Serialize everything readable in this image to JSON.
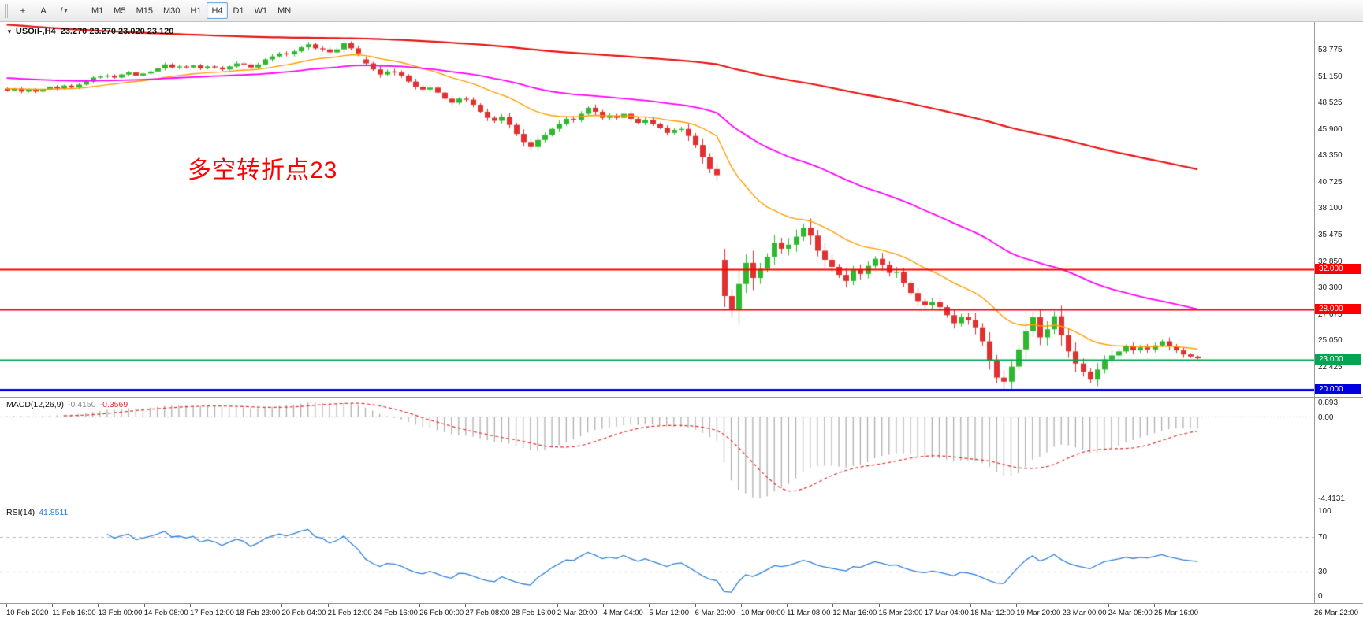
{
  "toolbar": {
    "left_icons": [
      {
        "name": "crosshair-icon",
        "glyph": "+"
      },
      {
        "name": "text-tool-icon",
        "glyph": "A"
      },
      {
        "name": "trendline-icon",
        "glyph": "/"
      },
      {
        "name": "dropdown-arrow-icon",
        "glyph": "▾"
      }
    ],
    "timeframes": [
      "M1",
      "M5",
      "M15",
      "M30",
      "H1",
      "H4",
      "D1",
      "W1",
      "MN"
    ],
    "active_timeframe": "H4"
  },
  "chart": {
    "symbol_icon": "▼",
    "title": "USOil-,H4",
    "ohlc_text": "23.270 23.270 23.020 23.120",
    "annotation": {
      "text": "多空转折点23",
      "color": "#ff0000"
    },
    "horizontal_lines": [
      {
        "price": 32.0,
        "label": "32.000",
        "color": "#ff0000",
        "width": 2
      },
      {
        "price": 28.0,
        "label": "28.000",
        "color": "#ff0000",
        "width": 2
      },
      {
        "price": 23.0,
        "label": "23.000",
        "color": "#00a651",
        "width": 2
      },
      {
        "price": 20.0,
        "label": "20.000",
        "color": "#0000e0",
        "width": 3
      }
    ],
    "price_ticks": [
      "53.775",
      "51.150",
      "48.525",
      "45.900",
      "43.350",
      "40.725",
      "38.100",
      "35.475",
      "32.850",
      "30.300",
      "27.675",
      "25.050",
      "22.425"
    ]
  },
  "chart_data": {
    "type": "candlestick",
    "symbol": "USOil-",
    "timeframe": "H4",
    "current_bar": {
      "open": 23.27,
      "high": 23.27,
      "low": 23.02,
      "close": 23.12
    },
    "up_color": "#2eb82e",
    "down_color": "#e03030",
    "bars_per_day": 5,
    "closes": [
      49.7,
      49.9,
      49.6,
      49.8,
      49.6,
      49.8,
      50.1,
      49.9,
      50.2,
      50.0,
      50.3,
      50.6,
      51.0,
      51.1,
      51.2,
      51.0,
      51.3,
      51.5,
      51.2,
      51.4,
      51.6,
      51.9,
      52.3,
      52.0,
      52.1,
      52.0,
      52.2,
      51.9,
      52.1,
      52.0,
      51.8,
      52.1,
      52.4,
      52.3,
      52.0,
      52.3,
      52.8,
      53.1,
      53.4,
      53.3,
      53.6,
      54.0,
      54.3,
      53.9,
      53.8,
      53.5,
      53.8,
      54.4,
      53.9,
      53.4,
      52.4,
      51.8,
      51.3,
      51.6,
      51.5,
      51.2,
      50.6,
      50.1,
      49.8,
      50.0,
      49.5,
      48.9,
      48.5,
      48.9,
      48.8,
      48.3,
      47.6,
      47.0,
      46.7,
      47.1,
      46.3,
      45.4,
      44.6,
      44.1,
      44.8,
      45.3,
      45.9,
      46.4,
      46.9,
      46.8,
      47.4,
      48.0,
      47.6,
      47.0,
      47.2,
      47.0,
      47.4,
      46.9,
      46.5,
      46.8,
      46.4,
      46.0,
      45.5,
      45.8,
      45.9,
      45.2,
      44.3,
      43.1,
      41.9,
      41.3,
      29.3,
      27.9,
      30.5,
      32.6,
      31.1,
      32.0,
      33.2,
      34.6,
      34.0,
      34.4,
      35.2,
      36.1,
      35.3,
      33.8,
      32.9,
      32.2,
      31.4,
      30.8,
      31.9,
      31.5,
      32.3,
      33.0,
      32.4,
      31.6,
      31.7,
      30.6,
      29.6,
      28.8,
      28.4,
      28.7,
      28.2,
      27.4,
      26.6,
      27.2,
      26.9,
      26.2,
      24.8,
      22.9,
      21.2,
      20.8,
      22.3,
      24.0,
      25.8,
      27.2,
      25.2,
      26.0,
      27.3,
      25.4,
      23.8,
      22.6,
      21.8,
      21.0,
      22.0,
      23.0,
      23.4,
      23.8,
      24.3,
      23.9,
      24.2,
      24.0,
      24.4,
      24.8,
      24.3,
      23.9,
      23.5,
      23.3,
      23.12
    ],
    "open_overrides": {
      "0": 49.9,
      "50": 52.8,
      "100": 32.9
    },
    "wick_base_per_day": [
      0.12,
      0.12,
      0.15,
      0.12,
      0.15,
      0.12,
      0.15,
      0.18,
      0.2,
      0.25,
      0.25,
      0.22,
      0.2,
      0.25,
      0.35,
      0.25,
      0.25,
      0.2,
      0.2,
      0.5,
      1.1,
      0.6,
      0.7,
      0.5,
      0.45,
      0.4,
      0.4,
      0.7,
      0.7,
      0.8,
      0.5,
      0.3,
      0.3,
      0.15
    ],
    "wick_cycle": [
      1.0,
      0.6,
      1.3,
      0.8,
      1.1
    ],
    "moving_averages": [
      {
        "name": "ma-fast-orange",
        "period": 20,
        "seed": 49.9,
        "color": "#ff9d00",
        "width": 1.4
      },
      {
        "name": "ma-mid-magenta",
        "period": 60,
        "seed": 51.0,
        "color": "#ff00ff",
        "width": 1.8
      },
      {
        "name": "ma-slow-red",
        "period": 250,
        "seed": 56.3,
        "color": "#e81212",
        "width": 2.2
      }
    ],
    "indicators": {
      "macd": {
        "label": "MACD(12,26,9)",
        "value": "-0.4150",
        "signal_value": "-0.3569",
        "fast": 12,
        "slow": 26,
        "signal": 9,
        "histogram_color": "#a9a9a9",
        "signal_color": "#e03030",
        "scale_labels": {
          "max": "0.893",
          "zero": "0.00",
          "min": "-4.4131"
        }
      },
      "rsi": {
        "label": "RSI(14)",
        "value": "41.8511",
        "period": 14,
        "line_color": "#2f7ed8",
        "levels": [
          30,
          70
        ],
        "scale_labels": [
          "100",
          "70",
          "30",
          "0"
        ]
      }
    },
    "time_labels": [
      "10 Feb 2020",
      "11 Feb 16:00",
      "13 Feb 00:00",
      "14 Feb 08:00",
      "17 Feb 12:00",
      "18 Feb 23:00",
      "20 Feb 04:00",
      "21 Feb 12:00",
      "24 Feb 16:00",
      "26 Feb 00:00",
      "27 Feb 08:00",
      "28 Feb 16:00",
      "2 Mar 20:00",
      "4 Mar 04:00",
      "5 Mar 12:00",
      "6 Mar 20:00",
      "10 Mar 00:00",
      "11 Mar 08:00",
      "12 Mar 16:00",
      "15 Mar 23:00",
      "17 Mar 04:00",
      "18 Mar 12:00",
      "19 Mar 20:00",
      "23 Mar 00:00",
      "24 Mar 08:00",
      "25 Mar 16:00",
      "26 Mar 22:00"
    ]
  }
}
